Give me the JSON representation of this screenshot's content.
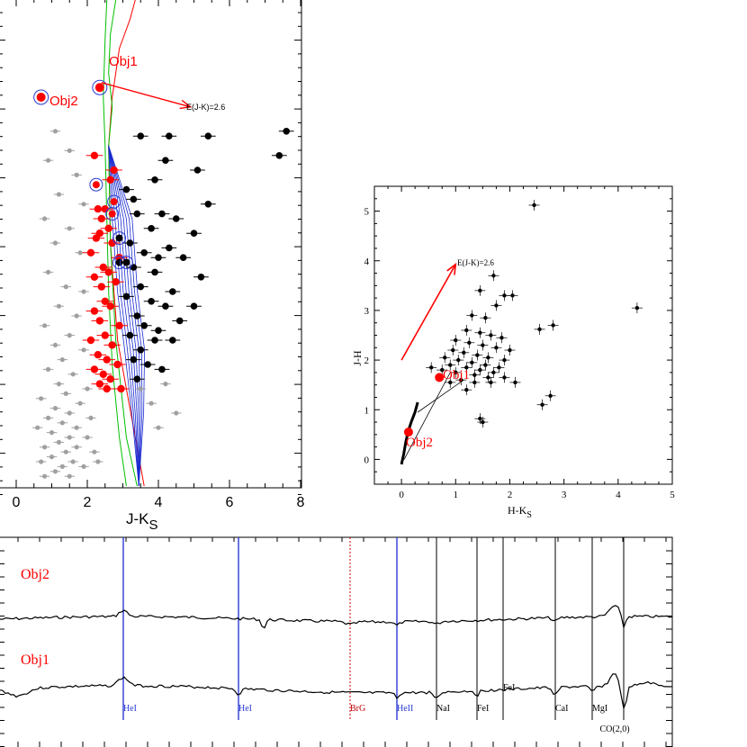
{
  "colors": {
    "axis": "#000000",
    "members": "#ff0000",
    "field": "#a0a0a0",
    "black_points": "#000000",
    "circle": "#2a3bd6",
    "isochrone_green": "#00c000",
    "isochrone_blue": "#1a2bd0",
    "reddening_arrow": "#ff0000",
    "he_lines": "#2a3bd6",
    "brg_line": "#c00000"
  },
  "chart_data": [
    {
      "id": "cmd",
      "type": "scatter",
      "xlabel": "J-K",
      "xlabel_sub": "S",
      "xlim": [
        0,
        8
      ],
      "x_ticks": [
        "0",
        "2",
        "4",
        "6",
        "8"
      ],
      "labels": {
        "obj1": "Obj1",
        "obj2": "Obj2",
        "arrow": "E(J-K)=2.6"
      },
      "objects": {
        "obj1": {
          "x": 2.35,
          "y": 0.18
        },
        "obj2": {
          "x": 0.7,
          "y": 0.2
        }
      },
      "reddening_arrow": {
        "from": [
          2.4,
          0.17
        ],
        "to": [
          4.9,
          0.22
        ]
      },
      "series": [
        {
          "name": "",
          "color": "red",
          "points": [
            [
              2.2,
              0.32
            ],
            [
              2.75,
              0.35
            ],
            [
              2.65,
              0.37
            ],
            [
              2.5,
              0.43
            ],
            [
              2.3,
              0.43
            ],
            [
              2.4,
              0.45
            ],
            [
              2.6,
              0.47
            ],
            [
              2.35,
              0.48
            ],
            [
              2.25,
              0.49
            ],
            [
              2.7,
              0.5
            ],
            [
              2.1,
              0.52
            ],
            [
              2.9,
              0.53
            ],
            [
              2.45,
              0.55
            ],
            [
              2.2,
              0.57
            ],
            [
              2.6,
              0.56
            ],
            [
              2.4,
              0.59
            ],
            [
              2.8,
              0.58
            ],
            [
              2.5,
              0.62
            ],
            [
              2.2,
              0.64
            ],
            [
              2.65,
              0.63
            ],
            [
              2.35,
              0.66
            ],
            [
              2.9,
              0.67
            ],
            [
              2.5,
              0.69
            ],
            [
              2.1,
              0.7
            ],
            [
              2.7,
              0.71
            ],
            [
              2.3,
              0.73
            ],
            [
              2.55,
              0.74
            ],
            [
              2.85,
              0.75
            ],
            [
              2.2,
              0.76
            ],
            [
              2.45,
              0.77
            ],
            [
              2.65,
              0.78
            ],
            [
              2.35,
              0.79
            ],
            [
              2.95,
              0.8
            ],
            [
              2.55,
              0.8
            ]
          ]
        },
        {
          "name": "",
          "color": "black",
          "points": [
            [
              3.5,
              0.28
            ],
            [
              4.3,
              0.28
            ],
            [
              5.4,
              0.28
            ],
            [
              7.6,
              0.27
            ],
            [
              7.4,
              0.32
            ],
            [
              4.2,
              0.33
            ],
            [
              5.1,
              0.35
            ],
            [
              3.9,
              0.37
            ],
            [
              3.1,
              0.39
            ],
            [
              3.3,
              0.41
            ],
            [
              5.4,
              0.42
            ],
            [
              3.4,
              0.44
            ],
            [
              4.1,
              0.44
            ],
            [
              4.5,
              0.45
            ],
            [
              3.8,
              0.47
            ],
            [
              5.0,
              0.48
            ],
            [
              3.2,
              0.5
            ],
            [
              4.3,
              0.51
            ],
            [
              3.6,
              0.52
            ],
            [
              4.0,
              0.53
            ],
            [
              4.7,
              0.53
            ],
            [
              3.3,
              0.55
            ],
            [
              3.9,
              0.56
            ],
            [
              5.2,
              0.57
            ],
            [
              3.5,
              0.59
            ],
            [
              4.4,
              0.6
            ],
            [
              3.1,
              0.61
            ],
            [
              3.8,
              0.62
            ],
            [
              4.2,
              0.63
            ],
            [
              5.0,
              0.63
            ],
            [
              3.4,
              0.65
            ],
            [
              4.6,
              0.66
            ],
            [
              3.6,
              0.67
            ],
            [
              4.0,
              0.68
            ],
            [
              3.2,
              0.69
            ],
            [
              3.9,
              0.7
            ],
            [
              4.4,
              0.7
            ],
            [
              3.5,
              0.72
            ],
            [
              3.3,
              0.74
            ],
            [
              3.7,
              0.75
            ],
            [
              4.1,
              0.76
            ],
            [
              3.4,
              0.78
            ]
          ]
        },
        {
          "name": "",
          "color": "gray",
          "points": [
            [
              1.1,
              0.27
            ],
            [
              1.5,
              0.31
            ],
            [
              0.9,
              0.33
            ],
            [
              1.7,
              0.36
            ],
            [
              1.2,
              0.4
            ],
            [
              1.9,
              0.42
            ],
            [
              0.8,
              0.45
            ],
            [
              1.5,
              0.47
            ],
            [
              1.1,
              0.5
            ],
            [
              1.8,
              0.52
            ],
            [
              0.9,
              0.56
            ],
            [
              1.4,
              0.59
            ],
            [
              1.9,
              0.6
            ],
            [
              1.2,
              0.63
            ],
            [
              1.7,
              0.65
            ],
            [
              0.8,
              0.67
            ],
            [
              1.5,
              0.69
            ],
            [
              1.1,
              0.71
            ],
            [
              1.9,
              0.72
            ],
            [
              1.3,
              0.74
            ],
            [
              0.9,
              0.76
            ],
            [
              1.6,
              0.77
            ],
            [
              1.2,
              0.79
            ],
            [
              2.0,
              0.8
            ],
            [
              1.4,
              0.81
            ],
            [
              0.7,
              0.82
            ],
            [
              1.8,
              0.83
            ],
            [
              1.1,
              0.84
            ],
            [
              1.5,
              0.85
            ],
            [
              0.9,
              0.86
            ],
            [
              2.1,
              0.86
            ],
            [
              1.3,
              0.87
            ],
            [
              1.7,
              0.88
            ],
            [
              0.6,
              0.88
            ],
            [
              1.0,
              0.89
            ],
            [
              1.5,
              0.9
            ],
            [
              2.0,
              0.9
            ],
            [
              1.2,
              0.91
            ],
            [
              0.8,
              0.92
            ],
            [
              1.7,
              0.92
            ],
            [
              1.4,
              0.93
            ],
            [
              2.2,
              0.93
            ],
            [
              1.0,
              0.94
            ],
            [
              1.6,
              0.95
            ],
            [
              0.7,
              0.95
            ],
            [
              1.3,
              0.96
            ],
            [
              1.9,
              0.96
            ],
            [
              1.1,
              0.97
            ],
            [
              0.8,
              0.98
            ],
            [
              1.5,
              0.98
            ],
            [
              2.3,
              0.95
            ],
            [
              3.5,
              0.8
            ],
            [
              3.8,
              0.83
            ],
            [
              4.2,
              0.79
            ],
            [
              4.5,
              0.85
            ],
            [
              4.0,
              0.88
            ]
          ]
        }
      ]
    },
    {
      "id": "ccd",
      "type": "scatter",
      "xlabel": "H-K",
      "xlabel_sub": "S",
      "ylabel": "J-H",
      "xlim": [
        -0.5,
        5
      ],
      "ylim": [
        -0.5,
        5.5
      ],
      "x_ticks": [
        "0",
        "1",
        "2",
        "3",
        "4",
        "5"
      ],
      "y_ticks": [
        "0",
        "1",
        "2",
        "3",
        "4",
        "5"
      ],
      "labels": {
        "obj1": "Obj1",
        "obj2": "Obj2",
        "arrow": "E(J-K)=2.6"
      },
      "objects": {
        "obj1": {
          "x": 0.7,
          "y": 1.65
        },
        "obj2": {
          "x": 0.13,
          "y": 0.55
        }
      },
      "reddening_arrow": {
        "from": [
          0.0,
          2.0
        ],
        "to": [
          1.0,
          3.93
        ]
      },
      "points": [
        [
          2.45,
          5.12
        ],
        [
          4.35,
          3.05
        ],
        [
          2.8,
          2.7
        ],
        [
          2.55,
          2.62
        ],
        [
          1.45,
          3.4
        ],
        [
          1.7,
          3.7
        ],
        [
          2.05,
          3.3
        ],
        [
          1.9,
          3.3
        ],
        [
          1.75,
          3.1
        ],
        [
          1.3,
          2.9
        ],
        [
          1.55,
          2.85
        ],
        [
          1.2,
          2.6
        ],
        [
          1.45,
          2.55
        ],
        [
          1.65,
          2.5
        ],
        [
          1.85,
          2.45
        ],
        [
          1.0,
          2.4
        ],
        [
          1.25,
          2.35
        ],
        [
          1.5,
          2.3
        ],
        [
          1.75,
          2.25
        ],
        [
          2.0,
          2.2
        ],
        [
          0.95,
          2.2
        ],
        [
          1.15,
          2.15
        ],
        [
          1.4,
          2.1
        ],
        [
          1.6,
          2.05
        ],
        [
          1.9,
          2.0
        ],
        [
          0.8,
          2.05
        ],
        [
          1.05,
          2.0
        ],
        [
          1.3,
          1.95
        ],
        [
          1.55,
          1.9
        ],
        [
          1.8,
          1.85
        ],
        [
          0.9,
          1.9
        ],
        [
          1.2,
          1.85
        ],
        [
          1.45,
          1.8
        ],
        [
          1.7,
          1.75
        ],
        [
          0.75,
          1.8
        ],
        [
          1.0,
          1.75
        ],
        [
          1.35,
          1.7
        ],
        [
          1.6,
          1.65
        ],
        [
          1.1,
          1.6
        ],
        [
          0.55,
          1.85
        ],
        [
          2.1,
          1.55
        ],
        [
          2.6,
          1.1
        ],
        [
          2.75,
          1.28
        ],
        [
          1.45,
          0.82
        ],
        [
          1.5,
          0.75
        ],
        [
          1.2,
          1.4
        ],
        [
          1.35,
          1.55
        ],
        [
          1.65,
          1.55
        ],
        [
          1.9,
          1.65
        ],
        [
          0.9,
          1.55
        ]
      ],
      "main_sequence": [
        [
          0.0,
          -0.1
        ],
        [
          0.04,
          0.1
        ],
        [
          0.08,
          0.35
        ],
        [
          0.12,
          0.55
        ],
        [
          0.18,
          0.75
        ],
        [
          0.25,
          0.95
        ],
        [
          0.3,
          1.15
        ]
      ]
    },
    {
      "id": "spectra",
      "type": "line",
      "labels": {
        "obj2": "Obj2",
        "obj1": "Obj1"
      },
      "line_markers": [
        {
          "label": "HeI",
          "x": 137,
          "color": "blue",
          "dashed": false
        },
        {
          "label": "HeI",
          "x": 265,
          "color": "blue",
          "dashed": false
        },
        {
          "label": "BrG",
          "x": 389,
          "color": "darkred",
          "dashed": true
        },
        {
          "label": "HeII",
          "x": 441,
          "color": "blue",
          "dashed": false
        },
        {
          "label": "NaI",
          "x": 485,
          "color": "black",
          "dashed": false
        },
        {
          "label": "FeI",
          "x": 530,
          "color": "black",
          "dashed": false
        },
        {
          "label": "FeI",
          "x": 559,
          "color": "black",
          "dashed": false,
          "label_high": true
        },
        {
          "label": "CaI",
          "x": 617,
          "color": "black",
          "dashed": false
        },
        {
          "label": "MgI",
          "x": 658,
          "color": "black",
          "dashed": false
        },
        {
          "label": "CO(2,0)",
          "x": 693,
          "color": "black",
          "dashed": false
        }
      ]
    }
  ]
}
